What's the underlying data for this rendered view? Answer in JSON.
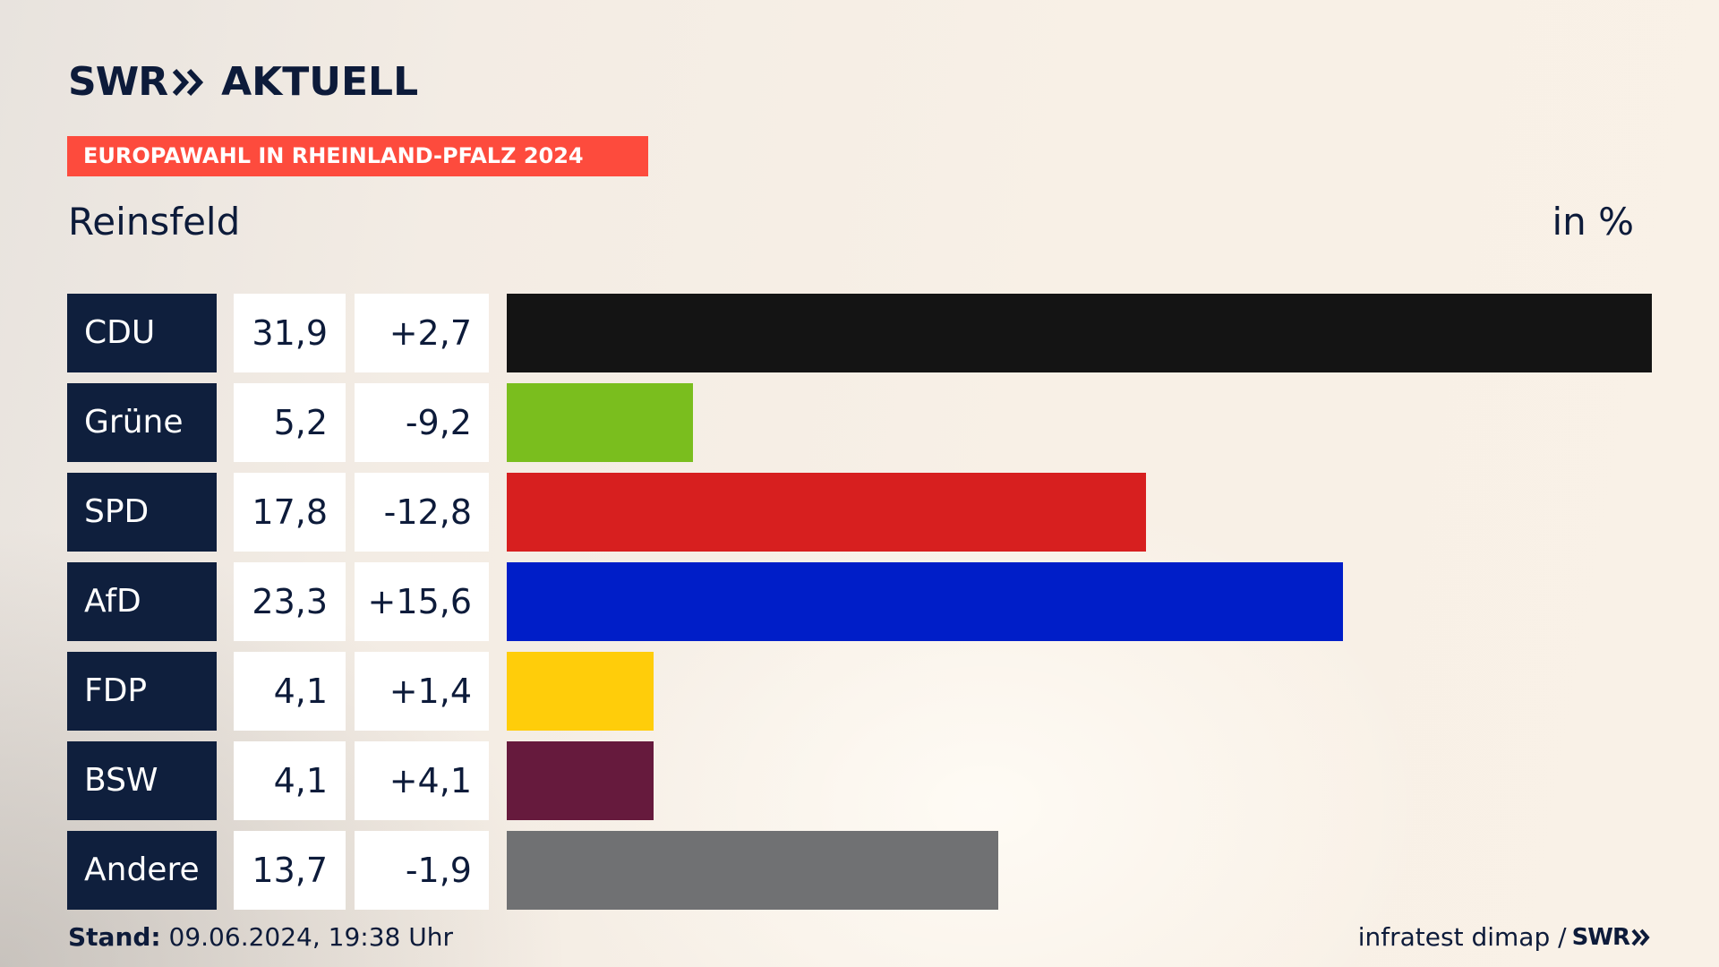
{
  "header": {
    "logo_swr": "SWR",
    "logo_aktuell": "AKTUELL",
    "banner": "EUROPAWAHL IN RHEINLAND-PFALZ 2024",
    "location": "Reinsfeld",
    "unit": "in %"
  },
  "chart_data": {
    "type": "bar",
    "orientation": "horizontal",
    "categories": [
      "CDU",
      "Grüne",
      "SPD",
      "AfD",
      "FDP",
      "BSW",
      "Andere"
    ],
    "values": [
      31.9,
      5.2,
      17.8,
      23.3,
      4.1,
      4.1,
      13.7
    ],
    "value_labels": [
      "31,9",
      "5,2",
      "17,8",
      "23,3",
      "4,1",
      "4,1",
      "13,7"
    ],
    "diff_labels": [
      "+2,7",
      "-9,2",
      "-12,8",
      "+15,6",
      "+1,4",
      "+4,1",
      "-1,9"
    ],
    "diffs": [
      2.7,
      -9.2,
      -12.8,
      15.6,
      1.4,
      4.1,
      -1.9
    ],
    "colors": [
      "#141414",
      "#7abe1e",
      "#d71f1f",
      "#001ec8",
      "#ffcd0a",
      "#661a3d",
      "#707173"
    ],
    "unit": "in %",
    "title": "Reinsfeld"
  },
  "footer": {
    "stand_label": "Stand:",
    "stand_value": "09.06.2024, 19:38 Uhr",
    "source_text": "infratest dimap /",
    "source_swr": "SWR"
  }
}
